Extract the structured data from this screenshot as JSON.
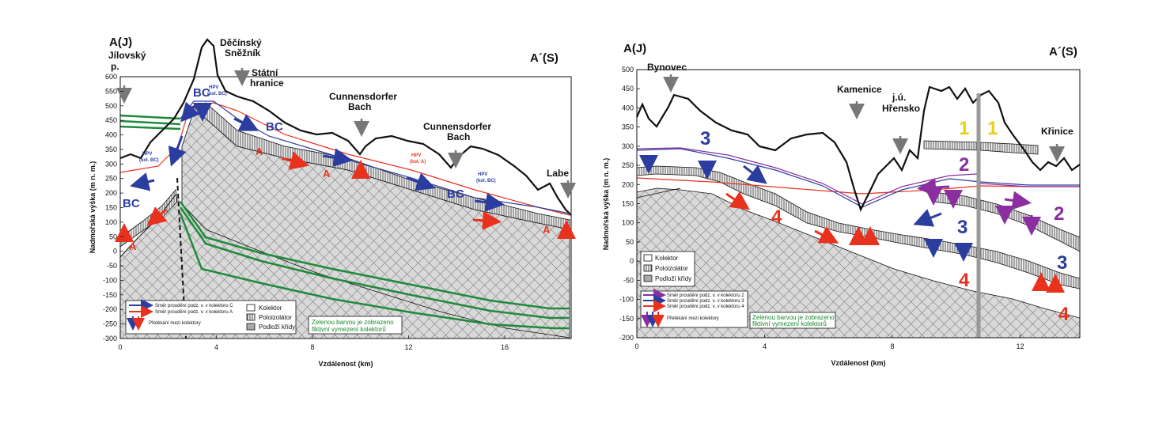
{
  "left": {
    "title_left": "A(J)",
    "title_right": "A´(S)",
    "ylabel": "Nadmořská výška (m n. m.)",
    "xlabel": "Vzdálenost (km)",
    "yticks": [
      "600",
      "550",
      "500",
      "450",
      "400",
      "350",
      "300",
      "250",
      "200",
      "150",
      "100",
      "50",
      "0",
      "-50",
      "-100",
      "-150",
      "-200",
      "-250",
      "-300"
    ],
    "xticks": [
      "0",
      "4",
      "8",
      "12",
      "16"
    ],
    "places": {
      "jilovsky_1": "Jílovský",
      "jilovsky_2": "p.",
      "decinsky_1": "Děčínský",
      "decinsky_2": "Sněžník",
      "statni_1": "Státní",
      "statni_2": "hranice",
      "cunn1_1": "Cunnensdorfer",
      "cunn1_2": "Bach",
      "cunn2_1": "Cunnensdorfer",
      "cunn2_2": "Bach",
      "labe": "Labe"
    },
    "annot": {
      "bc": "BC",
      "a": "A",
      "hpv": "HPV",
      "kol_bc": "(kol. BC)",
      "kol_a": "(kol. A)"
    },
    "legend": {
      "flow_c": "Směr proudění podz. v. v kolektoru C",
      "flow_a": "Směr proudění podz. v. v kolektoru A",
      "leak": "Přetékání mezi kolektory",
      "kolektor": "Kolektor",
      "poloizolator": "Poloizolátor",
      "podlozi": "Podloží křídy",
      "green_1": "Zelenou barvou je zobrazeno",
      "green_2": "fiktivní vymezení kolektorů"
    }
  },
  "right": {
    "title_left": "A(J)",
    "title_right": "A´(S)",
    "ylabel": "Nadmořská výška (m n. m.)",
    "xlabel": "Vzdálenost (km)",
    "yticks": [
      "500",
      "450",
      "400",
      "350",
      "300",
      "250",
      "200",
      "150",
      "100",
      "50",
      "0",
      "-50",
      "-100",
      "-150",
      "-200"
    ],
    "xticks": [
      "0",
      "4",
      "8",
      "12"
    ],
    "places": {
      "bynovec": "Bynovec",
      "kamenice": "Kamenice",
      "ju_1": "j.ú.",
      "ju_2": "Hřensko",
      "krinice": "Křinice"
    },
    "annot": {
      "n1": "1",
      "n2": "2",
      "n3": "3",
      "n4": "4"
    },
    "legend": {
      "kolektor": "Kolektor",
      "poloizolator": "Poloizolátor",
      "podlozi": "Podloží křídy",
      "flow_2": "Směr proudění podz. v. v kolektoru 2",
      "flow_3": "Směr proudění podz. v. v kolektoru 3",
      "flow_4": "Směr proudění podz. v. v kolektoru 4",
      "leak": "Přetékání mezi kolektory",
      "green_1": "Zelenou barvou je zobrazeno",
      "green_2": "fiktivní vymezení kolektorů"
    }
  },
  "colors": {
    "blue": "#2b3d9e",
    "red": "#e8321e",
    "purple": "#8a2ea0",
    "green": "#1f8a3a",
    "yellow": "#e6d21a",
    "grey": "#777777"
  }
}
